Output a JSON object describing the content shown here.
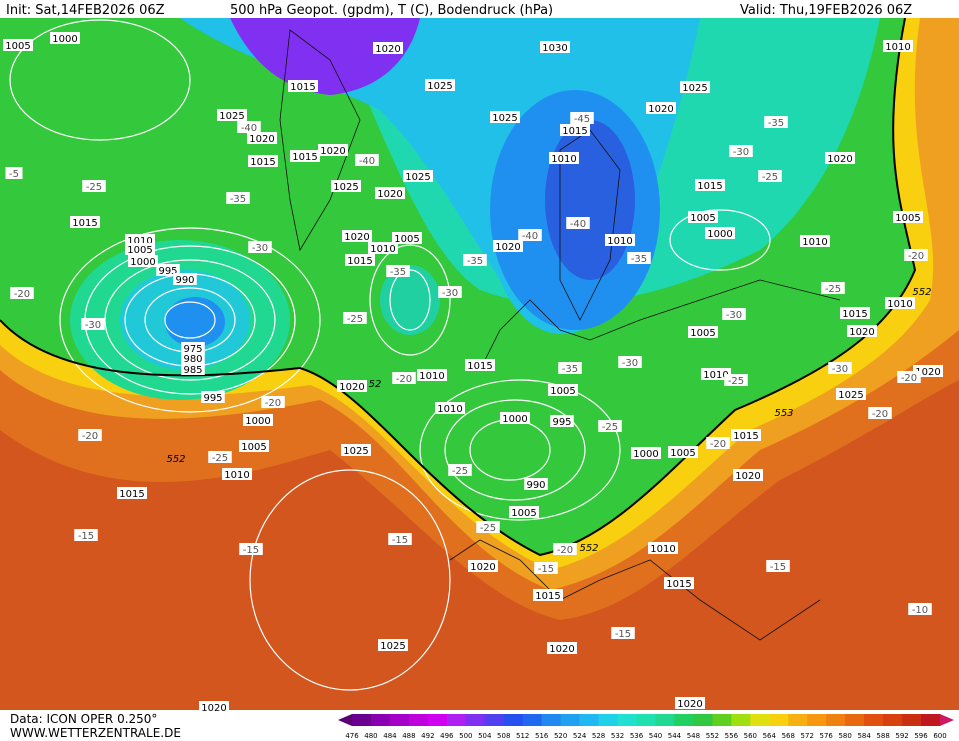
{
  "header": {
    "init": "Init: Sat,14FEB2026 06Z",
    "title": "500 hPa Geopot. (gpdm), T (C), Bodendruck (hPa)",
    "valid": "Valid: Thu,19FEB2026 06Z"
  },
  "footer": {
    "data": "Data: ICON OPER 0.250°",
    "site": "WWW.WETTERZENTRALE.DE"
  },
  "legend": {
    "levels": [
      476,
      480,
      484,
      488,
      492,
      496,
      500,
      504,
      508,
      512,
      516,
      520,
      524,
      528,
      532,
      536,
      540,
      544,
      548,
      552,
      556,
      560,
      564,
      568,
      572,
      576,
      580,
      584,
      588,
      592,
      596,
      600
    ],
    "colors": [
      "#5a0070",
      "#6a0090",
      "#8a00b0",
      "#a400c8",
      "#bf00dc",
      "#d000f0",
      "#b020f0",
      "#8030f0",
      "#5040f0",
      "#2850f0",
      "#2068f0",
      "#2088f0",
      "#20a0f0",
      "#20b8f0",
      "#20d0e8",
      "#20e0d0",
      "#20e0b0",
      "#20d890",
      "#20d060",
      "#30c840",
      "#60d020",
      "#a0e010",
      "#e0e010",
      "#f8d010",
      "#f8b010",
      "#f89810",
      "#f08010",
      "#e86810",
      "#e05010",
      "#d84010",
      "#c83010",
      "#c01820",
      "#d01860"
    ]
  },
  "map_labels": {
    "isobars": [
      "1000",
      "1005",
      "1020",
      "1030",
      "1010",
      "1015",
      "1025",
      "1025",
      "1020",
      "1025",
      "1025",
      "1015",
      "1020",
      "1015",
      "1015",
      "1020",
      "1010",
      "1025",
      "1025",
      "1020",
      "1015",
      "1020",
      "1005",
      "1015",
      "1000",
      "1005",
      "1020",
      "1010",
      "1005",
      "1020",
      "1010",
      "1010",
      "1005",
      "1000",
      "995",
      "990",
      "1010",
      "1015",
      "975",
      "980",
      "985",
      "995",
      "1015",
      "1010",
      "1020",
      "1010",
      "1000",
      "1005",
      "1000",
      "995",
      "1005",
      "1010",
      "1015",
      "1020",
      "1025",
      "1020",
      "1010",
      "1005",
      "1000",
      "1005",
      "1015",
      "1020",
      "1010",
      "1025",
      "990",
      "1015",
      "1005",
      "1020",
      "1010",
      "1015",
      "1015",
      "1020",
      "1025",
      "1020",
      "1020"
    ],
    "temperatures": [
      "-5",
      "-25",
      "-35",
      "-40",
      "-40",
      "-45",
      "-35",
      "-30",
      "-25",
      "-40",
      "-40",
      "-30",
      "-35",
      "-35",
      "-35",
      "-30",
      "-20",
      "-30",
      "-25",
      "-20",
      "-30",
      "-25",
      "-20",
      "-35",
      "-30",
      "-30",
      "-25",
      "-20",
      "-20",
      "-20",
      "-25",
      "-20",
      "-25",
      "-20",
      "-25",
      "-25",
      "-15",
      "-15",
      "-15",
      "-20",
      "-15",
      "-15",
      "-15",
      "-10"
    ],
    "heights": [
      "552",
      "52",
      "553",
      "552",
      "552"
    ]
  }
}
